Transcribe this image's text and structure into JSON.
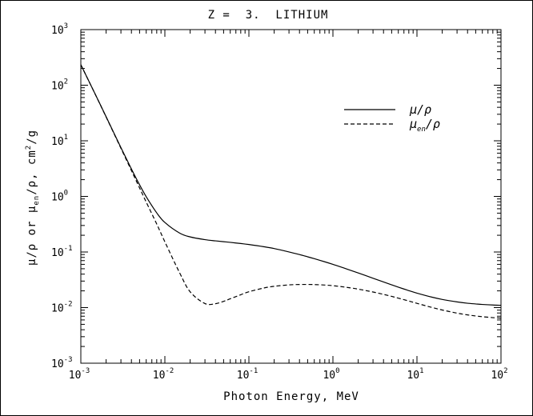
{
  "chart_data": {
    "type": "line",
    "title": "Z =  3.  LITHIUM",
    "xlabel": "Photon Energy, MeV",
    "ylabel": "μ/ρ or μen/ρ, cm²/g",
    "ylabel_parts": {
      "mu": "μ",
      "slash_rho_or": "/ρ or ",
      "mu2": "μ",
      "en": "en",
      "slash_rho_comma": "/ρ, cm",
      "sq": "2",
      "per_g": "/g"
    },
    "x_scale": "log",
    "y_scale": "log",
    "xlim": [
      0.001,
      100
    ],
    "ylim": [
      0.001,
      1000
    ],
    "x_ticks": [
      {
        "base": "10",
        "exp": "-3",
        "value": 0.001
      },
      {
        "base": "10",
        "exp": "-2",
        "value": 0.01
      },
      {
        "base": "10",
        "exp": "-1",
        "value": 0.1
      },
      {
        "base": "10",
        "exp": "0",
        "value": 1
      },
      {
        "base": "10",
        "exp": "1",
        "value": 10
      },
      {
        "base": "10",
        "exp": "2",
        "value": 100
      }
    ],
    "y_ticks": [
      {
        "base": "10",
        "exp": "-3",
        "value": 0.001
      },
      {
        "base": "10",
        "exp": "-2",
        "value": 0.01
      },
      {
        "base": "10",
        "exp": "-1",
        "value": 0.1
      },
      {
        "base": "10",
        "exp": "0",
        "value": 1
      },
      {
        "base": "10",
        "exp": "1",
        "value": 10
      },
      {
        "base": "10",
        "exp": "2",
        "value": 100
      },
      {
        "base": "10",
        "exp": "3",
        "value": 1000
      }
    ],
    "grid": false,
    "legend_position": "top-right",
    "series": [
      {
        "name": "μ/ρ",
        "legend": {
          "main": "μ",
          "sub": "",
          "suffix": "/ρ"
        },
        "style": "solid",
        "x": [
          0.001,
          0.0015,
          0.002,
          0.003,
          0.004,
          0.005,
          0.006,
          0.008,
          0.01,
          0.015,
          0.02,
          0.03,
          0.04,
          0.05,
          0.06,
          0.08,
          0.1,
          0.15,
          0.2,
          0.3,
          0.4,
          0.5,
          0.6,
          0.8,
          1,
          1.25,
          1.5,
          2,
          3,
          4,
          5,
          6,
          8,
          10,
          15,
          20,
          30,
          40,
          50,
          60,
          80,
          100
        ],
        "y": [
          233.9,
          66.68,
          27.07,
          7.549,
          3.114,
          1.619,
          0.9875,
          0.5062,
          0.3395,
          0.2186,
          0.1868,
          0.1668,
          0.1586,
          0.1533,
          0.149,
          0.1421,
          0.1364,
          0.1246,
          0.1153,
          0.1003,
          0.0899,
          0.08201,
          0.07581,
          0.06664,
          0.05998,
          0.05363,
          0.0488,
          0.04198,
          0.03376,
          0.02892,
          0.02567,
          0.02334,
          0.02021,
          0.01821,
          0.01544,
          0.01403,
          0.01266,
          0.01197,
          0.01164,
          0.0114,
          0.01113,
          0.011
        ]
      },
      {
        "name": "μen/ρ",
        "legend": {
          "main": "μ",
          "sub": "en",
          "suffix": "/ρ"
        },
        "style": "dashed",
        "x": [
          0.001,
          0.0015,
          0.002,
          0.003,
          0.004,
          0.005,
          0.006,
          0.008,
          0.01,
          0.015,
          0.02,
          0.03,
          0.04,
          0.05,
          0.06,
          0.08,
          0.1,
          0.15,
          0.2,
          0.3,
          0.4,
          0.5,
          0.6,
          0.8,
          1,
          1.25,
          1.5,
          2,
          3,
          4,
          5,
          6,
          8,
          10,
          15,
          20,
          30,
          40,
          50,
          60,
          80,
          100
        ],
        "y": [
          233.7,
          66.42,
          26.8,
          7.335,
          2.918,
          1.42,
          0.7901,
          0.3191,
          0.1524,
          0.04212,
          0.01923,
          0.01182,
          0.01176,
          0.01297,
          0.0144,
          0.01705,
          0.01928,
          0.02248,
          0.02415,
          0.02562,
          0.02604,
          0.02608,
          0.02596,
          0.02544,
          0.02478,
          0.02386,
          0.023,
          0.02149,
          0.01908,
          0.01729,
          0.01591,
          0.0148,
          0.01314,
          0.01194,
          0.01008,
          0.00905,
          0.00795,
          0.00739,
          0.00707,
          0.00686,
          0.0066,
          0.00648
        ]
      }
    ]
  }
}
